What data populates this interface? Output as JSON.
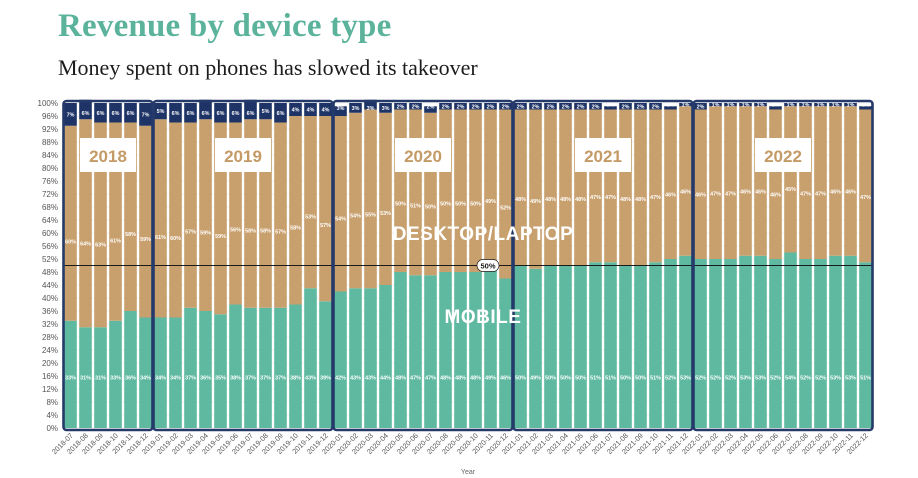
{
  "header": {
    "title": "Revenue by device type",
    "subtitle": "Money spent on phones has slowed its takeover"
  },
  "colors": {
    "mobile": "#5fb9a0",
    "desktop": "#c8a06e",
    "year_box": "#253a6b",
    "year_text": "#c49a66",
    "top_band": "#1e3366",
    "label_white": "#ffffff"
  },
  "chart_data": {
    "type": "bar",
    "stacked": true,
    "title": "Revenue by device type",
    "subtitle": "Money spent on phones has slowed its takeover",
    "xlabel": "Year",
    "ylabel": "",
    "ylim": [
      0,
      100
    ],
    "yticks": [
      0,
      4,
      8,
      12,
      16,
      20,
      24,
      28,
      32,
      36,
      40,
      44,
      48,
      52,
      56,
      60,
      64,
      68,
      72,
      76,
      80,
      84,
      88,
      92,
      96,
      100
    ],
    "ytick_suffix": "%",
    "reference_line": {
      "value": 50,
      "label": "50%"
    },
    "categories": [
      "2018-07",
      "2018-08",
      "2018-09",
      "2018-10",
      "2018-11",
      "2018-12",
      "2019-01",
      "2019-02",
      "2019-03",
      "2019-04",
      "2019-05",
      "2019-06",
      "2019-07",
      "2019-08",
      "2019-09",
      "2019-10",
      "2019-11",
      "2019-12",
      "2020-01",
      "2020-02",
      "2020-03",
      "2020-04",
      "2020-05",
      "2020-06",
      "2020-07",
      "2020-08",
      "2020-09",
      "2020-10",
      "2020-11",
      "2020-12",
      "2021-01",
      "2021-02",
      "2021-03",
      "2021-04",
      "2021-05",
      "2021-06",
      "2021-07",
      "2021-08",
      "2021-09",
      "2021-10",
      "2021-11",
      "2021-12",
      "2022-01",
      "2022-02",
      "2022-03",
      "2022-04",
      "2022-05",
      "2022-06",
      "2022-07",
      "2022-08",
      "2022-09",
      "2022-10",
      "2022-11",
      "2022-12"
    ],
    "series": [
      {
        "name": "MOBILE",
        "values": [
          33,
          31,
          31,
          33,
          36,
          34,
          34,
          34,
          37,
          36,
          35,
          38,
          37,
          37,
          37,
          38,
          43,
          39,
          42,
          43,
          43,
          44,
          48,
          47,
          47,
          48,
          48,
          48,
          49,
          46,
          50,
          49,
          50,
          50,
          50,
          51,
          51,
          50,
          50,
          51,
          52,
          53,
          52,
          52,
          52,
          53,
          53,
          52,
          54,
          52,
          52,
          53,
          53,
          51
        ]
      },
      {
        "name": "DESKTOP/LAPTOP",
        "values": [
          60,
          64,
          63,
          61,
          58,
          59,
          61,
          60,
          57,
          59,
          59,
          56,
          58,
          58,
          57,
          58,
          53,
          57,
          54,
          54,
          55,
          53,
          50,
          51,
          50,
          50,
          50,
          50,
          49,
          52,
          48,
          49,
          48,
          48,
          48,
          47,
          47,
          48,
          48,
          47,
          46,
          46,
          46,
          47,
          47,
          46,
          46,
          46,
          45,
          47,
          47,
          46,
          46,
          47
        ]
      },
      {
        "name": "",
        "values": [
          7,
          6,
          6,
          6,
          6,
          7,
          5,
          6,
          6,
          6,
          6,
          6,
          6,
          5,
          6,
          4,
          4,
          4,
          3,
          3,
          3,
          3,
          2,
          2,
          2,
          2,
          2,
          2,
          2,
          2,
          2,
          2,
          2,
          2,
          2,
          2,
          1,
          2,
          2,
          2,
          1,
          1,
          2,
          1,
          1,
          1,
          1,
          1,
          1,
          1,
          1,
          1,
          1,
          1
        ]
      }
    ],
    "year_groups": [
      {
        "label": "2018",
        "start": 0,
        "end": 5
      },
      {
        "label": "2019",
        "start": 6,
        "end": 17
      },
      {
        "label": "2020",
        "start": 18,
        "end": 29
      },
      {
        "label": "2021",
        "start": 30,
        "end": 41
      },
      {
        "label": "2022",
        "start": 42,
        "end": 53
      }
    ],
    "annotations": [
      {
        "text": "DESKTOP/LAPTOP",
        "series": 1
      },
      {
        "text": "MOBILE",
        "series": 0
      }
    ]
  }
}
